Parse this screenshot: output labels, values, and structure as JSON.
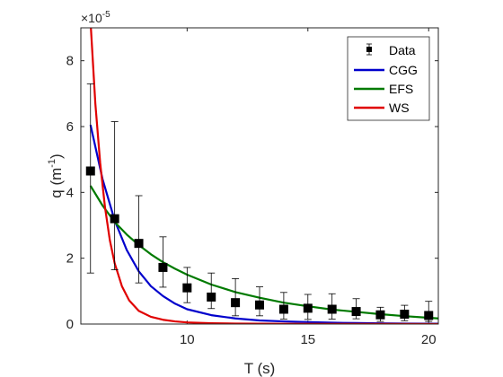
{
  "chart_data": {
    "type": "scatter",
    "xlabel": "T (s)",
    "ylabel_base": "q (m",
    "ylabel_exp": "-1",
    "ylabel_close": ")",
    "y_multiplier_base": "×10",
    "y_multiplier_exp": "-5",
    "xlim": [
      5.6,
      20.4
    ],
    "ylim": [
      0,
      9
    ],
    "x_ticks": [
      10,
      15,
      20
    ],
    "y_ticks": [
      0,
      2,
      4,
      6,
      8
    ],
    "grid": false,
    "legend_position": "top-right",
    "data_series": {
      "name": "Data",
      "color": "#000000",
      "x": [
        6,
        7,
        8,
        9,
        10,
        11,
        12,
        13,
        14,
        15,
        16,
        17,
        18,
        19,
        20
      ],
      "y": [
        4.65,
        3.2,
        2.45,
        1.72,
        1.1,
        0.82,
        0.65,
        0.58,
        0.45,
        0.48,
        0.45,
        0.38,
        0.28,
        0.3,
        0.26
      ],
      "err_low": [
        3.1,
        1.55,
        1.2,
        0.6,
        0.45,
        0.35,
        0.4,
        0.33,
        0.3,
        0.34,
        0.3,
        0.22,
        0.2,
        0.2,
        0.18
      ],
      "err_high": [
        2.65,
        2.95,
        1.45,
        0.93,
        0.62,
        0.73,
        0.73,
        0.55,
        0.51,
        0.42,
        0.47,
        0.39,
        0.23,
        0.27,
        0.43
      ]
    },
    "series": [
      {
        "name": "CGG",
        "color": "#0000cc",
        "x": [
          6,
          6.5,
          7,
          7.5,
          8,
          8.5,
          9,
          9.5,
          10,
          11,
          12,
          13,
          14,
          15,
          16,
          17,
          18,
          19,
          20,
          20.4
        ],
        "y": [
          6.05,
          4.4,
          3.15,
          2.25,
          1.6,
          1.15,
          0.85,
          0.62,
          0.45,
          0.27,
          0.17,
          0.11,
          0.08,
          0.06,
          0.04,
          0.03,
          0.02,
          0.015,
          0.01,
          0.01
        ]
      },
      {
        "name": "EFS",
        "color": "#007a00",
        "x": [
          6,
          6.5,
          7,
          7.5,
          8,
          8.5,
          9,
          9.5,
          10,
          11,
          12,
          13,
          14,
          15,
          16,
          17,
          18,
          19,
          20,
          20.4
        ],
        "y": [
          4.2,
          3.6,
          3.1,
          2.72,
          2.4,
          2.12,
          1.88,
          1.68,
          1.5,
          1.2,
          0.97,
          0.8,
          0.65,
          0.54,
          0.44,
          0.37,
          0.3,
          0.24,
          0.19,
          0.17
        ]
      },
      {
        "name": "WS",
        "color": "#e00000",
        "x": [
          6,
          6.2,
          6.4,
          6.6,
          6.8,
          7,
          7.3,
          7.6,
          8,
          8.5,
          9,
          9.5,
          10,
          11,
          12,
          14,
          16,
          18,
          20.4
        ],
        "y": [
          9.2,
          6.7,
          4.9,
          3.55,
          2.55,
          1.85,
          1.15,
          0.72,
          0.4,
          0.22,
          0.13,
          0.08,
          0.05,
          0.025,
          0.015,
          0.008,
          0.005,
          0.003,
          0.002
        ]
      }
    ]
  }
}
